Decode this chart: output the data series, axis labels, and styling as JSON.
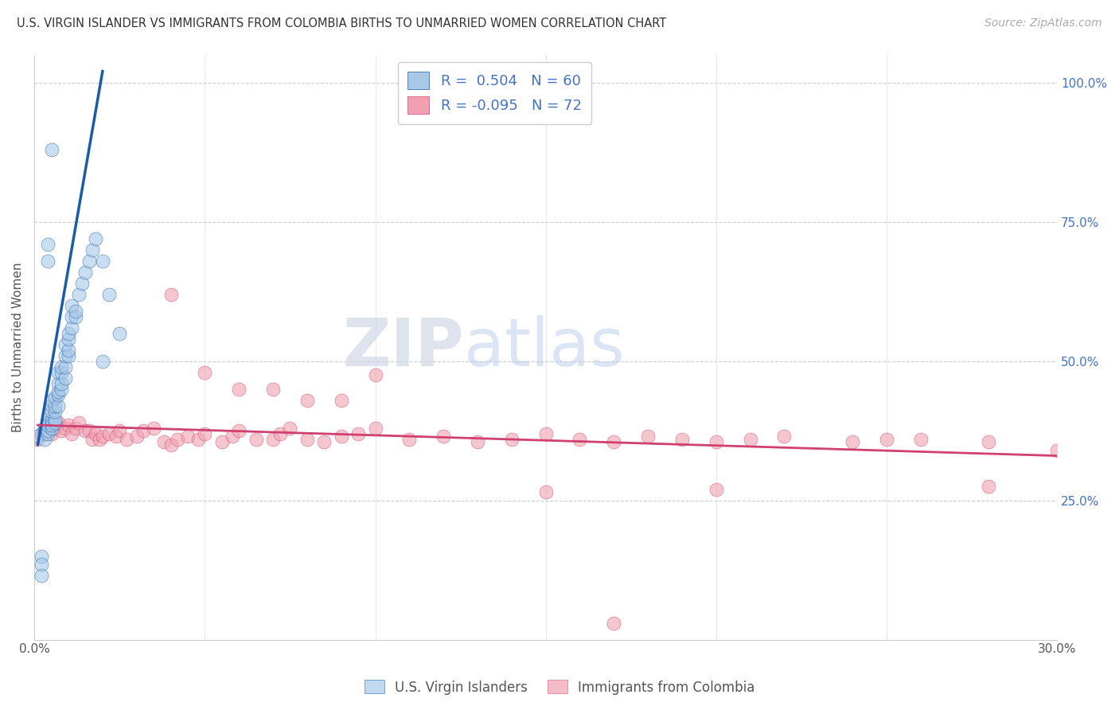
{
  "title": "U.S. VIRGIN ISLANDER VS IMMIGRANTS FROM COLOMBIA BIRTHS TO UNMARRIED WOMEN CORRELATION CHART",
  "source": "Source: ZipAtlas.com",
  "ylabel": "Births to Unmarried Women",
  "xlim": [
    0.0,
    0.3
  ],
  "ylim": [
    0.0,
    1.05
  ],
  "blue_color": "#a8c8e8",
  "blue_line_color": "#1a5ca8",
  "pink_color": "#f0a0b0",
  "pink_line_color": "#d04070",
  "R_blue": 0.504,
  "N_blue": 60,
  "R_pink": -0.095,
  "N_pink": 72,
  "watermark_zip": "ZIP",
  "watermark_atlas": "atlas",
  "legend1_label": "U.S. Virgin Islanders",
  "legend2_label": "Immigrants from Colombia",
  "blue_scatter_x": [
    0.001,
    0.002,
    0.002,
    0.002,
    0.003,
    0.003,
    0.003,
    0.003,
    0.004,
    0.004,
    0.004,
    0.004,
    0.004,
    0.005,
    0.005,
    0.005,
    0.005,
    0.005,
    0.005,
    0.005,
    0.006,
    0.006,
    0.006,
    0.006,
    0.006,
    0.007,
    0.007,
    0.007,
    0.007,
    0.007,
    0.008,
    0.008,
    0.008,
    0.008,
    0.009,
    0.009,
    0.009,
    0.009,
    0.01,
    0.01,
    0.01,
    0.01,
    0.011,
    0.011,
    0.011,
    0.012,
    0.012,
    0.013,
    0.014,
    0.015,
    0.016,
    0.017,
    0.018,
    0.02,
    0.022,
    0.025,
    0.004,
    0.004,
    0.005,
    0.02
  ],
  "blue_scatter_y": [
    0.365,
    0.15,
    0.135,
    0.115,
    0.37,
    0.38,
    0.375,
    0.36,
    0.37,
    0.375,
    0.39,
    0.395,
    0.385,
    0.38,
    0.39,
    0.395,
    0.385,
    0.41,
    0.42,
    0.43,
    0.39,
    0.395,
    0.41,
    0.42,
    0.435,
    0.42,
    0.44,
    0.445,
    0.46,
    0.48,
    0.45,
    0.46,
    0.48,
    0.49,
    0.47,
    0.49,
    0.51,
    0.53,
    0.51,
    0.52,
    0.54,
    0.55,
    0.56,
    0.58,
    0.6,
    0.58,
    0.59,
    0.62,
    0.64,
    0.66,
    0.68,
    0.7,
    0.72,
    0.68,
    0.62,
    0.55,
    0.68,
    0.71,
    0.88,
    0.5
  ],
  "pink_scatter_x": [
    0.001,
    0.002,
    0.003,
    0.004,
    0.005,
    0.006,
    0.007,
    0.008,
    0.009,
    0.01,
    0.011,
    0.012,
    0.013,
    0.015,
    0.016,
    0.017,
    0.018,
    0.019,
    0.02,
    0.022,
    0.024,
    0.025,
    0.027,
    0.03,
    0.032,
    0.035,
    0.038,
    0.04,
    0.042,
    0.045,
    0.048,
    0.05,
    0.055,
    0.058,
    0.06,
    0.065,
    0.07,
    0.072,
    0.075,
    0.08,
    0.085,
    0.09,
    0.095,
    0.1,
    0.11,
    0.12,
    0.13,
    0.14,
    0.15,
    0.16,
    0.17,
    0.18,
    0.19,
    0.2,
    0.21,
    0.22,
    0.24,
    0.25,
    0.26,
    0.28,
    0.3,
    0.04,
    0.05,
    0.06,
    0.07,
    0.08,
    0.09,
    0.1,
    0.15,
    0.2,
    0.28,
    0.17
  ],
  "pink_scatter_y": [
    0.36,
    0.37,
    0.375,
    0.38,
    0.37,
    0.38,
    0.39,
    0.375,
    0.38,
    0.385,
    0.37,
    0.38,
    0.39,
    0.375,
    0.375,
    0.36,
    0.37,
    0.36,
    0.365,
    0.37,
    0.365,
    0.375,
    0.36,
    0.365,
    0.375,
    0.38,
    0.355,
    0.35,
    0.36,
    0.365,
    0.36,
    0.37,
    0.355,
    0.365,
    0.375,
    0.36,
    0.36,
    0.37,
    0.38,
    0.36,
    0.355,
    0.365,
    0.37,
    0.38,
    0.36,
    0.365,
    0.355,
    0.36,
    0.37,
    0.36,
    0.355,
    0.365,
    0.36,
    0.355,
    0.36,
    0.365,
    0.355,
    0.36,
    0.36,
    0.355,
    0.34,
    0.62,
    0.48,
    0.45,
    0.45,
    0.43,
    0.43,
    0.475,
    0.265,
    0.27,
    0.275,
    0.03
  ],
  "blue_line_x": [
    0.001,
    0.02
  ],
  "blue_line_y": [
    0.35,
    1.02
  ],
  "pink_line_x": [
    0.001,
    0.3
  ],
  "pink_line_y": [
    0.385,
    0.33
  ]
}
